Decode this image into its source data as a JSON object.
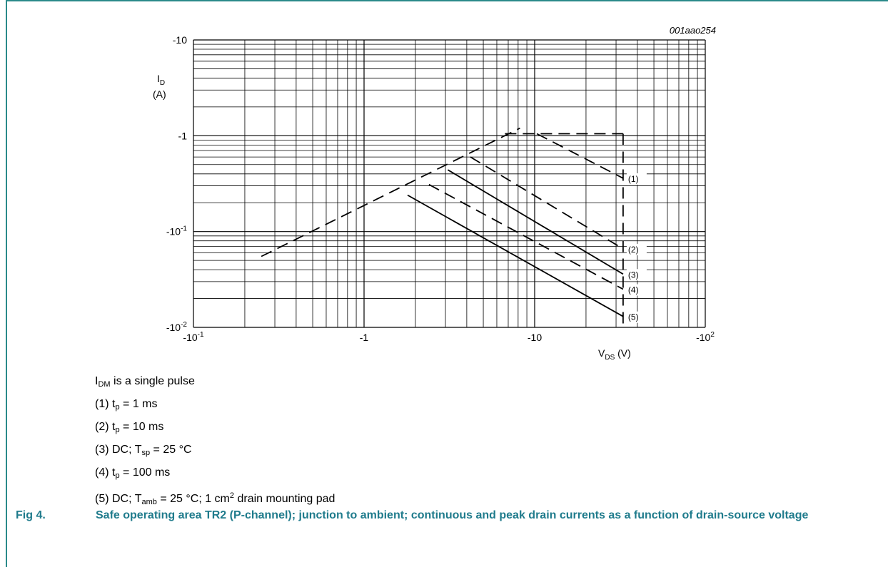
{
  "chart_data": {
    "type": "line",
    "code": "001aao254",
    "x_scale": "log",
    "y_scale": "log",
    "xlim": [
      -0.1,
      -100
    ],
    "ylim": [
      -0.01,
      -10
    ],
    "grid": true,
    "x_ticks": [
      {
        "value": -0.1,
        "base": "-10",
        "exp": "-1"
      },
      {
        "value": -1,
        "base": "-1",
        "exp": ""
      },
      {
        "value": -10,
        "base": "-10",
        "exp": ""
      },
      {
        "value": -100,
        "base": "-10",
        "exp": "2"
      }
    ],
    "y_ticks": [
      {
        "value": -10,
        "base": "-10",
        "exp": ""
      },
      {
        "value": -1,
        "base": "-1",
        "exp": ""
      },
      {
        "value": -0.1,
        "base": "-10",
        "exp": "-1"
      },
      {
        "value": -0.01,
        "base": "-10",
        "exp": "-2"
      }
    ],
    "ylabel": {
      "main": "I",
      "sub": "D",
      "unit": "(A)"
    },
    "xlabel": {
      "main": "V",
      "sub": "DS",
      "unit": " (V)"
    },
    "limit_line": {
      "x": [
        -0.25,
        -8.2
      ],
      "y": [
        -0.055,
        -1.2
      ]
    },
    "max_current": {
      "x": [
        -6.7,
        -10.3,
        -33
      ],
      "y": [
        -1.05,
        -1.05,
        -1.05
      ]
    },
    "max_voltage": {
      "x": [
        -33,
        -33
      ],
      "y": [
        -1.05,
        -0.01
      ]
    },
    "series": [
      {
        "label": "(1)",
        "style": "dashed",
        "x": [
          -10.3,
          -33
        ],
        "y": [
          -1.05,
          -0.36
        ]
      },
      {
        "label": "(2)",
        "style": "dashed",
        "x": [
          -4.2,
          -33
        ],
        "y": [
          -0.6,
          -0.066
        ]
      },
      {
        "label": "(3)",
        "style": "solid",
        "x": [
          -3.1,
          -33
        ],
        "y": [
          -0.44,
          -0.036
        ]
      },
      {
        "label": "(4)",
        "style": "dashed",
        "x": [
          -2.4,
          -33
        ],
        "y": [
          -0.31,
          -0.025
        ]
      },
      {
        "label": "(5)",
        "style": "solid",
        "x": [
          -1.8,
          -33
        ],
        "y": [
          -0.24,
          -0.013
        ]
      }
    ]
  },
  "notes": {
    "line0_pre": "I",
    "line0_sub": "DM",
    "line0_post": " is a single pulse",
    "line1_pre": "(1) t",
    "line1_sub": "p",
    "line1_post": " = 1 ms",
    "line2_pre": "(2) t",
    "line2_sub": "p",
    "line2_post": " = 10 ms",
    "line3_pre": "(3) DC; T",
    "line3_sub": "sp",
    "line3_post": " = 25 °C",
    "line4_pre": "(4) t",
    "line4_sub": "p",
    "line4_post": " = 100 ms",
    "line5_pre": "(5) DC; T",
    "line5_sub": "amb",
    "line5_mid": " = 25 °C; 1 cm",
    "line5_sup": "2",
    "line5_post": " drain mounting pad"
  },
  "caption": {
    "fig": "Fig 4.",
    "text": "Safe operating area TR2 (P-channel); junction to ambient; continuous and peak drain currents as a function of drain-source voltage"
  }
}
